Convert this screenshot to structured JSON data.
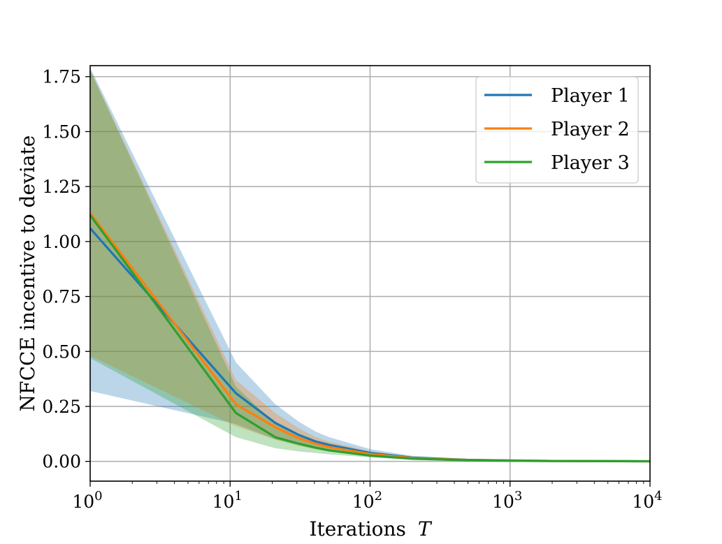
{
  "chart_data": {
    "type": "line",
    "xlabel": "Iterations",
    "xlabel_var": "T",
    "ylabel": "NFCCE incentive to deviate",
    "xscale": "log",
    "xlim": [
      1,
      10000
    ],
    "ylim": [
      -0.09,
      1.8
    ],
    "x_ticks": [
      {
        "value": 1,
        "base": "10",
        "exp": "0"
      },
      {
        "value": 10,
        "base": "10",
        "exp": "1"
      },
      {
        "value": 100,
        "base": "10",
        "exp": "2"
      },
      {
        "value": 1000,
        "base": "10",
        "exp": "3"
      },
      {
        "value": 10000,
        "base": "10",
        "exp": "4"
      }
    ],
    "y_ticks": [
      {
        "value": 0.0,
        "label": "0.00"
      },
      {
        "value": 0.25,
        "label": "0.25"
      },
      {
        "value": 0.5,
        "label": "0.50"
      },
      {
        "value": 0.75,
        "label": "0.75"
      },
      {
        "value": 1.0,
        "label": "1.00"
      },
      {
        "value": 1.25,
        "label": "1.25"
      },
      {
        "value": 1.5,
        "label": "1.50"
      },
      {
        "value": 1.75,
        "label": "1.75"
      }
    ],
    "grid": true,
    "legend_position": "top-right",
    "x": [
      1,
      11,
      21,
      31,
      41,
      51,
      101,
      201,
      501,
      1001,
      2001,
      5001,
      10000
    ],
    "series": [
      {
        "name": "Player 1",
        "color": "#1f77b4",
        "values": [
          1.06,
          0.31,
          0.175,
          0.12,
          0.09,
          0.075,
          0.038,
          0.017,
          0.007,
          0.004,
          0.002,
          0.001,
          0.0005
        ],
        "lower": [
          0.32,
          0.17,
          0.1,
          0.075,
          0.058,
          0.048,
          0.027,
          0.012,
          0.005,
          0.003,
          0.0015,
          0.0007,
          0.0003
        ],
        "upper": [
          1.79,
          0.45,
          0.26,
          0.18,
          0.135,
          0.11,
          0.055,
          0.025,
          0.01,
          0.006,
          0.003,
          0.0015,
          0.0008
        ]
      },
      {
        "name": "Player 2",
        "color": "#ff7f0e",
        "values": [
          1.13,
          0.26,
          0.155,
          0.105,
          0.08,
          0.065,
          0.033,
          0.015,
          0.006,
          0.0035,
          0.0018,
          0.0009,
          0.0004
        ],
        "lower": [
          0.48,
          0.16,
          0.1,
          0.07,
          0.055,
          0.045,
          0.024,
          0.011,
          0.004,
          0.0025,
          0.0012,
          0.0006,
          0.0003
        ],
        "upper": [
          1.78,
          0.37,
          0.22,
          0.15,
          0.11,
          0.09,
          0.045,
          0.02,
          0.008,
          0.005,
          0.0025,
          0.0012,
          0.0006
        ]
      },
      {
        "name": "Player 3",
        "color": "#2ca02c",
        "values": [
          1.12,
          0.22,
          0.11,
          0.08,
          0.062,
          0.05,
          0.026,
          0.012,
          0.005,
          0.003,
          0.0015,
          0.0008,
          0.0004
        ],
        "lower": [
          0.47,
          0.11,
          0.06,
          0.045,
          0.038,
          0.032,
          0.018,
          0.008,
          0.003,
          0.002,
          0.001,
          0.0005,
          0.0002
        ],
        "upper": [
          1.78,
          0.34,
          0.17,
          0.12,
          0.09,
          0.072,
          0.036,
          0.017,
          0.007,
          0.004,
          0.002,
          0.001,
          0.0005
        ]
      }
    ]
  }
}
